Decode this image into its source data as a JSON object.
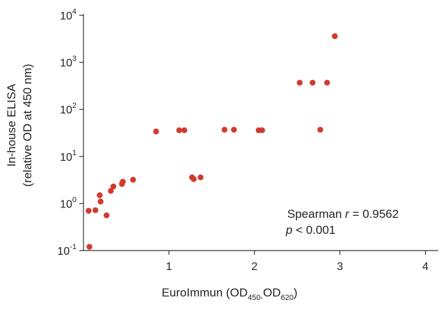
{
  "chart_data": {
    "type": "scatter",
    "xlabel": {
      "main": "EuroImmun (OD",
      "sub1": "450-",
      "mid": "OD",
      "sub2": "620",
      "end": ")"
    },
    "ylabel": [
      "In-house ELISA",
      "(relative OD at 450 nm)"
    ],
    "x_scale": "linear",
    "y_scale": "log",
    "xlim": [
      0,
      4.15
    ],
    "ylim": [
      0.1,
      10000
    ],
    "x_ticks": [
      {
        "value": 1,
        "label": "1"
      },
      {
        "value": 2,
        "label": "2"
      },
      {
        "value": 3,
        "label": "3"
      },
      {
        "value": 4,
        "label": "4"
      }
    ],
    "y_ticks": [
      {
        "value": 0.1,
        "base": "10",
        "exp": "-1"
      },
      {
        "value": 1,
        "base": "10",
        "exp": "0"
      },
      {
        "value": 10,
        "base": "10",
        "exp": "1"
      },
      {
        "value": 100,
        "base": "10",
        "exp": "2"
      },
      {
        "value": 1000,
        "base": "10",
        "exp": "3"
      },
      {
        "value": 10000,
        "base": "10",
        "exp": "4"
      }
    ],
    "grid": false,
    "marker_color": "#d13a2f",
    "points": [
      {
        "x": 0.07,
        "y": 0.12
      },
      {
        "x": 0.06,
        "y": 0.7
      },
      {
        "x": 0.14,
        "y": 0.72
      },
      {
        "x": 0.2,
        "y": 1.1
      },
      {
        "x": 0.19,
        "y": 1.5
      },
      {
        "x": 0.27,
        "y": 0.56
      },
      {
        "x": 0.32,
        "y": 1.85
      },
      {
        "x": 0.35,
        "y": 2.3
      },
      {
        "x": 0.45,
        "y": 2.6
      },
      {
        "x": 0.46,
        "y": 2.9
      },
      {
        "x": 0.58,
        "y": 3.2
      },
      {
        "x": 0.85,
        "y": 34
      },
      {
        "x": 1.12,
        "y": 36
      },
      {
        "x": 1.18,
        "y": 36
      },
      {
        "x": 1.27,
        "y": 3.6
      },
      {
        "x": 1.29,
        "y": 3.3
      },
      {
        "x": 1.37,
        "y": 3.6
      },
      {
        "x": 1.65,
        "y": 37
      },
      {
        "x": 1.76,
        "y": 37
      },
      {
        "x": 2.05,
        "y": 36
      },
      {
        "x": 2.09,
        "y": 36
      },
      {
        "x": 2.53,
        "y": 370
      },
      {
        "x": 2.68,
        "y": 370
      },
      {
        "x": 2.77,
        "y": 37
      },
      {
        "x": 2.85,
        "y": 370
      },
      {
        "x": 2.94,
        "y": 3600
      }
    ],
    "annotation": {
      "line1_text": "Spearman ",
      "line1_var": "r",
      "line1_value": " = 0.9562",
      "line2_var": "p",
      "line2_value": " < 0.001"
    }
  }
}
